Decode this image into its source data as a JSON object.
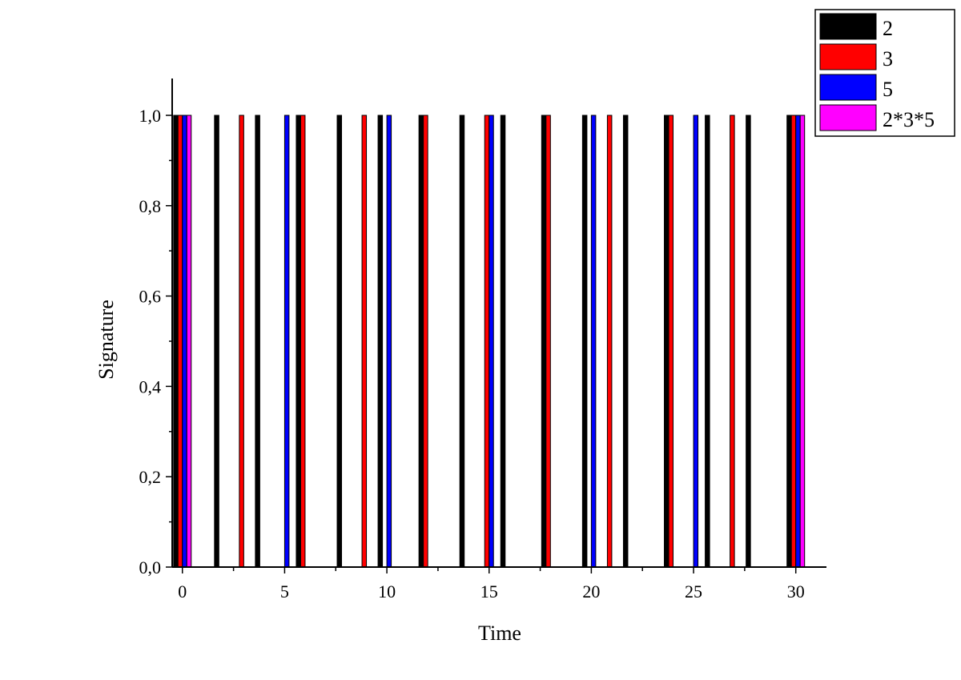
{
  "chart_data": {
    "type": "bar",
    "title": "",
    "xlabel": "Time",
    "ylabel": "Signature",
    "xlim": [
      -0.5,
      31.5
    ],
    "ylim": [
      0,
      1.08
    ],
    "x_ticks": [
      0,
      5,
      10,
      15,
      20,
      25,
      30
    ],
    "y_ticks": [
      0.0,
      0.2,
      0.4,
      0.6,
      0.8,
      1.0
    ],
    "y_tick_labels": [
      "0,0",
      "0,2",
      "0,4",
      "0,6",
      "0,8",
      "1,0"
    ],
    "grid": false,
    "legend": "top-right",
    "series": [
      {
        "name": "2",
        "color": "#000000",
        "x": [
          0,
          2,
          4,
          6,
          8,
          10,
          12,
          14,
          16,
          18,
          20,
          22,
          24,
          26,
          28,
          30
        ],
        "values": [
          1,
          1,
          1,
          1,
          1,
          1,
          1,
          1,
          1,
          1,
          1,
          1,
          1,
          1,
          1,
          1
        ]
      },
      {
        "name": "3",
        "color": "#ff0000",
        "x": [
          0,
          3,
          6,
          9,
          12,
          15,
          18,
          21,
          24,
          27,
          30
        ],
        "values": [
          1,
          1,
          1,
          1,
          1,
          1,
          1,
          1,
          1,
          1,
          1
        ]
      },
      {
        "name": "5",
        "color": "#0000ff",
        "x": [
          0,
          5,
          10,
          15,
          20,
          25,
          30
        ],
        "values": [
          1,
          1,
          1,
          1,
          1,
          1,
          1
        ]
      },
      {
        "name": "2*3*5",
        "color": "#ff00ff",
        "x": [
          0,
          30
        ],
        "values": [
          1,
          1
        ]
      }
    ]
  }
}
